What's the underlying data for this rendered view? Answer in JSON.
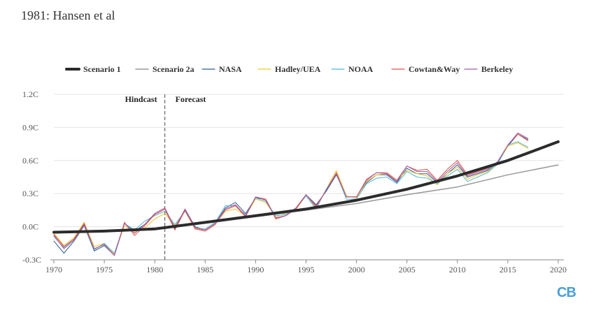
{
  "header": {
    "title": "1981: Hansen et al"
  },
  "logo": {
    "text": "CB",
    "color": "#4a9fd8"
  },
  "chart_data": {
    "type": "line",
    "title": "1981: Hansen et al",
    "xlabel": "",
    "ylabel": "",
    "xlim": [
      1970,
      2020
    ],
    "ylim": [
      -0.3,
      1.2
    ],
    "x_ticks": [
      "1970",
      "1975",
      "1980",
      "1985",
      "1990",
      "1995",
      "2000",
      "2005",
      "2010",
      "2015",
      "2020"
    ],
    "y_ticks": [
      "-0.3C",
      "0.0C",
      "0.3C",
      "0.6C",
      "0.9C",
      "1.2C"
    ],
    "grid": "horizontal",
    "legend_position": "top",
    "annotations": [
      {
        "text": "Hindcast",
        "x": 1981,
        "side": "left"
      },
      {
        "text": "Forecast",
        "x": 1981,
        "side": "right"
      }
    ],
    "divider_year": 1981,
    "series": [
      {
        "name": "Scenario 1",
        "color": "#2b2b2b",
        "width": 4,
        "x": [
          1970,
          1975,
          1980,
          1985,
          1990,
          1995,
          2000,
          2005,
          2010,
          2015,
          2020
        ],
        "values": [
          -0.05,
          -0.04,
          -0.02,
          0.04,
          0.1,
          0.16,
          0.24,
          0.34,
          0.46,
          0.6,
          0.77
        ]
      },
      {
        "name": "Scenario 2a",
        "color": "#999999",
        "width": 1.5,
        "x": [
          1970,
          1975,
          1980,
          1985,
          1990,
          1995,
          2000,
          2005,
          2010,
          2015,
          2020
        ],
        "values": [
          -0.05,
          -0.04,
          -0.02,
          0.03,
          0.09,
          0.15,
          0.21,
          0.29,
          0.36,
          0.47,
          0.56
        ]
      },
      {
        "name": "NASA",
        "color": "#2e5e8a",
        "width": 1,
        "x": [
          1970,
          1971,
          1972,
          1973,
          1974,
          1975,
          1976,
          1977,
          1978,
          1979,
          1980,
          1981,
          1982,
          1983,
          1984,
          1985,
          1986,
          1987,
          1988,
          1989,
          1990,
          1991,
          1992,
          1993,
          1994,
          1995,
          1996,
          1997,
          1998,
          1999,
          2000,
          2001,
          2002,
          2003,
          2004,
          2005,
          2006,
          2007,
          2008,
          2009,
          2010,
          2011,
          2012,
          2013,
          2014,
          2015,
          2016,
          2017
        ],
        "values": [
          -0.13,
          -0.24,
          -0.13,
          0.01,
          -0.22,
          -0.17,
          -0.26,
          0.03,
          -0.04,
          0.02,
          0.11,
          0.16,
          -0.02,
          0.16,
          0.0,
          -0.03,
          0.03,
          0.17,
          0.22,
          0.12,
          0.26,
          0.25,
          0.08,
          0.1,
          0.17,
          0.29,
          0.2,
          0.32,
          0.47,
          0.27,
          0.27,
          0.4,
          0.47,
          0.47,
          0.4,
          0.53,
          0.48,
          0.48,
          0.4,
          0.48,
          0.56,
          0.45,
          0.48,
          0.51,
          0.58,
          0.73,
          0.84,
          0.79
        ]
      },
      {
        "name": "Hadley/UEA",
        "color": "#f2c72c",
        "width": 1,
        "x": [
          1970,
          1971,
          1972,
          1973,
          1974,
          1975,
          1976,
          1977,
          1978,
          1979,
          1980,
          1981,
          1982,
          1983,
          1984,
          1985,
          1986,
          1987,
          1988,
          1989,
          1990,
          1991,
          1992,
          1993,
          1994,
          1995,
          1996,
          1997,
          1998,
          1999,
          2000,
          2001,
          2002,
          2003,
          2004,
          2005,
          2006,
          2007,
          2008,
          2009,
          2010,
          2011,
          2012,
          2013,
          2014,
          2015,
          2016,
          2017
        ],
        "values": [
          -0.06,
          -0.17,
          -0.1,
          0.04,
          -0.18,
          -0.15,
          -0.25,
          0.01,
          -0.05,
          -0.01,
          0.07,
          0.12,
          0.01,
          0.14,
          -0.02,
          -0.03,
          0.03,
          0.14,
          0.16,
          0.1,
          0.25,
          0.22,
          0.09,
          0.12,
          0.16,
          0.28,
          0.17,
          0.34,
          0.51,
          0.28,
          0.26,
          0.41,
          0.47,
          0.48,
          0.42,
          0.51,
          0.48,
          0.46,
          0.38,
          0.48,
          0.54,
          0.43,
          0.47,
          0.5,
          0.57,
          0.73,
          0.76,
          0.71
        ]
      },
      {
        "name": "NOAA",
        "color": "#55b6d6",
        "width": 1,
        "x": [
          1970,
          1971,
          1972,
          1973,
          1974,
          1975,
          1976,
          1977,
          1978,
          1979,
          1980,
          1981,
          1982,
          1983,
          1984,
          1985,
          1986,
          1987,
          1988,
          1989,
          1990,
          1991,
          1992,
          1993,
          1994,
          1995,
          1996,
          1997,
          1998,
          1999,
          2000,
          2001,
          2002,
          2003,
          2004,
          2005,
          2006,
          2007,
          2008,
          2009,
          2010,
          2011,
          2012,
          2013,
          2014,
          2015,
          2016,
          2017
        ],
        "values": [
          -0.09,
          -0.19,
          -0.11,
          0.02,
          -0.21,
          -0.15,
          -0.24,
          0.03,
          -0.03,
          0.05,
          0.1,
          0.14,
          0.02,
          0.14,
          -0.01,
          -0.02,
          0.04,
          0.19,
          0.19,
          0.11,
          0.26,
          0.23,
          0.1,
          0.11,
          0.17,
          0.28,
          0.16,
          0.34,
          0.48,
          0.25,
          0.25,
          0.39,
          0.44,
          0.45,
          0.39,
          0.5,
          0.45,
          0.44,
          0.39,
          0.46,
          0.52,
          0.41,
          0.45,
          0.49,
          0.57,
          0.74,
          0.77,
          0.72
        ]
      },
      {
        "name": "Cowtan&Way",
        "color": "#e0524a",
        "width": 1,
        "x": [
          1970,
          1971,
          1972,
          1973,
          1974,
          1975,
          1976,
          1977,
          1978,
          1979,
          1980,
          1981,
          1982,
          1983,
          1984,
          1985,
          1986,
          1987,
          1988,
          1989,
          1990,
          1991,
          1992,
          1993,
          1994,
          1995,
          1996,
          1997,
          1998,
          1999,
          2000,
          2001,
          2002,
          2003,
          2004,
          2005,
          2006,
          2007,
          2008,
          2009,
          2010,
          2011,
          2012,
          2013,
          2014,
          2015,
          2016,
          2017
        ],
        "values": [
          -0.07,
          -0.18,
          -0.11,
          0.03,
          -0.2,
          -0.16,
          -0.26,
          0.04,
          -0.08,
          0.01,
          0.11,
          0.16,
          -0.03,
          0.15,
          -0.02,
          -0.04,
          0.02,
          0.15,
          0.19,
          0.09,
          0.27,
          0.25,
          0.07,
          0.1,
          0.16,
          0.29,
          0.18,
          0.33,
          0.49,
          0.27,
          0.27,
          0.43,
          0.49,
          0.49,
          0.42,
          0.55,
          0.51,
          0.52,
          0.42,
          0.52,
          0.6,
          0.47,
          0.5,
          0.53,
          0.59,
          0.74,
          0.84,
          0.78
        ]
      },
      {
        "name": "Berkeley",
        "color": "#a65aa6",
        "width": 1,
        "x": [
          1970,
          1971,
          1972,
          1973,
          1974,
          1975,
          1976,
          1977,
          1978,
          1979,
          1980,
          1981,
          1982,
          1983,
          1984,
          1985,
          1986,
          1987,
          1988,
          1989,
          1990,
          1991,
          1992,
          1993,
          1994,
          1995,
          1996,
          1997,
          1998,
          1999,
          2000,
          2001,
          2002,
          2003,
          2004,
          2005,
          2006,
          2007,
          2008,
          2009,
          2010,
          2011,
          2012,
          2013,
          2014,
          2015,
          2016,
          2017
        ],
        "values": [
          -0.08,
          -0.2,
          -0.12,
          0.02,
          -0.2,
          -0.16,
          -0.26,
          0.03,
          -0.06,
          0.02,
          0.12,
          0.17,
          -0.01,
          0.16,
          -0.01,
          -0.03,
          0.03,
          0.16,
          0.2,
          0.1,
          0.27,
          0.24,
          0.08,
          0.1,
          0.17,
          0.29,
          0.19,
          0.33,
          0.48,
          0.27,
          0.27,
          0.42,
          0.49,
          0.48,
          0.41,
          0.55,
          0.5,
          0.5,
          0.41,
          0.5,
          0.58,
          0.46,
          0.49,
          0.52,
          0.59,
          0.74,
          0.85,
          0.8
        ]
      }
    ]
  }
}
